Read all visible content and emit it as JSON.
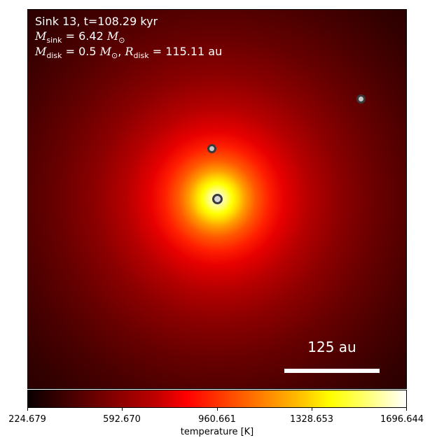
{
  "title_lines": {
    "line1": "Sink 13, t=108.29 kyr",
    "msink_symbol": "M",
    "msink_sub": "sink",
    "msink_value": "= 6.42",
    "mdisk_symbol": "M",
    "mdisk_sub": "disk",
    "mdisk_value": "= 0.5",
    "rdisk_symbol": "R",
    "rdisk_sub": "disk",
    "rdisk_value": "= 115.11 au",
    "msun": "M",
    "msun_sub": "⊙"
  },
  "scalebar": {
    "label": "125 au"
  },
  "colorbar": {
    "label": "temperature [K]",
    "ticks": [
      "224.679",
      "592.670",
      "960.661",
      "1328.653",
      "1696.644"
    ],
    "colormap": "hot"
  },
  "sinks": [
    {
      "name": "central-sink"
    },
    {
      "name": "upper-left-sink"
    },
    {
      "name": "upper-right-sink"
    }
  ]
}
